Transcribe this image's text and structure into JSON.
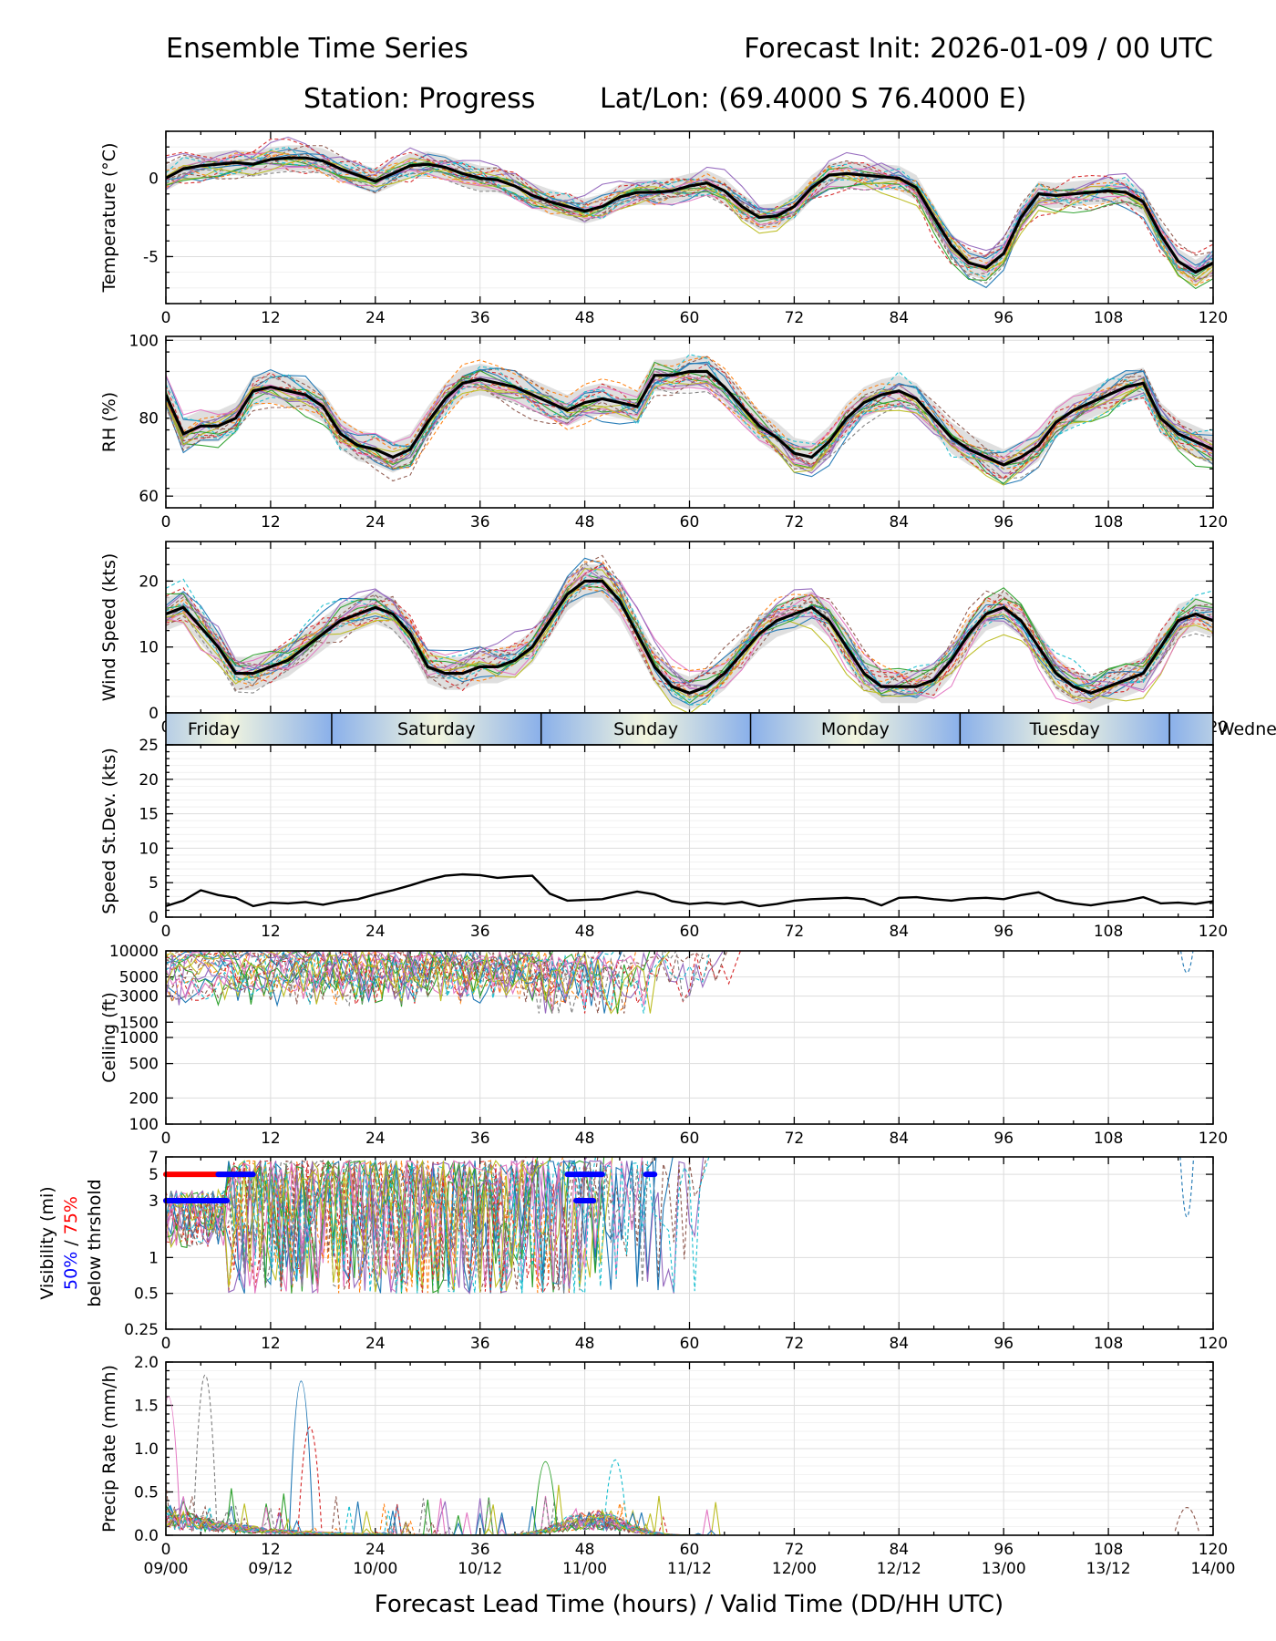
{
  "header": {
    "title_left": "Ensemble Time Series",
    "title_right": "Forecast Init: 2026-01-09 / 00 UTC",
    "station": "Station: Progress",
    "latlon": "Lat/Lon: (69.4000 S 76.4000 E)"
  },
  "xaxis": {
    "lead_ticks": [
      "0",
      "12",
      "24",
      "36",
      "48",
      "60",
      "72",
      "84",
      "96",
      "108",
      "120"
    ],
    "valid_ticks": [
      "09/00",
      "09/12",
      "10/00",
      "10/12",
      "11/00",
      "11/12",
      "12/00",
      "12/12",
      "13/00",
      "13/12",
      "14/00"
    ],
    "label": "Forecast Lead Time (hours) / Valid Time (DD/HH UTC)",
    "range": [
      0,
      120
    ]
  },
  "day_strip": {
    "days": [
      "Friday",
      "Saturday",
      "Sunday",
      "Monday",
      "Tuesday",
      "Wedne"
    ],
    "boundaries_hours": [
      19,
      43,
      67,
      91,
      115
    ]
  },
  "colors": {
    "members": [
      "#1f77b4",
      "#ff7f0e",
      "#2ca02c",
      "#d62728",
      "#9467bd",
      "#8c564b",
      "#e377c2",
      "#7f7f7f",
      "#bcbd22",
      "#17becf"
    ],
    "mean": "#000000",
    "spread": "#d9d9d9",
    "vis50": "#0000ff",
    "vis75": "#ff0000",
    "day_edge": "#8ab0ea",
    "day_mid": "#f3f6df"
  },
  "chart_data": [
    {
      "type": "line",
      "panel": "temperature",
      "ylabel": "Temperature (°C)",
      "ylim": [
        -8,
        3
      ],
      "yticks": [
        0,
        -5
      ],
      "ytick_labels": [
        "0",
        "-5"
      ],
      "x": [
        0,
        2,
        4,
        6,
        8,
        10,
        12,
        14,
        16,
        18,
        20,
        22,
        24,
        26,
        28,
        30,
        32,
        34,
        36,
        38,
        40,
        42,
        44,
        46,
        48,
        50,
        52,
        54,
        56,
        58,
        60,
        62,
        64,
        66,
        68,
        70,
        72,
        74,
        76,
        78,
        80,
        82,
        84,
        86,
        88,
        90,
        92,
        94,
        96,
        98,
        100,
        102,
        104,
        106,
        108,
        110,
        112,
        114,
        116,
        118,
        120
      ],
      "mean": [
        0.0,
        0.6,
        0.8,
        0.9,
        1.0,
        0.9,
        1.2,
        1.3,
        1.3,
        1.1,
        0.6,
        0.2,
        -0.2,
        0.3,
        0.8,
        0.9,
        0.7,
        0.3,
        0.0,
        -0.1,
        -0.5,
        -1.1,
        -1.5,
        -1.8,
        -2.1,
        -1.8,
        -1.2,
        -0.9,
        -0.9,
        -0.8,
        -0.5,
        -0.3,
        -0.8,
        -1.8,
        -2.5,
        -2.4,
        -1.8,
        -0.6,
        0.2,
        0.3,
        0.2,
        0.1,
        0.0,
        -0.6,
        -2.5,
        -4.3,
        -5.4,
        -5.7,
        -4.8,
        -2.5,
        -1.0,
        -1.1,
        -1.0,
        -0.9,
        -0.8,
        -0.9,
        -1.5,
        -3.6,
        -5.3,
        -6.0,
        -5.4
      ],
      "spread": 0.8,
      "members": 20
    },
    {
      "type": "line",
      "panel": "rh",
      "ylabel": "RH (%)",
      "ylim": [
        57,
        101
      ],
      "yticks": [
        100,
        80,
        60
      ],
      "ytick_labels": [
        "100",
        "80",
        "60"
      ],
      "x": [
        0,
        2,
        4,
        6,
        8,
        10,
        12,
        14,
        16,
        18,
        20,
        22,
        24,
        26,
        28,
        30,
        32,
        34,
        36,
        38,
        40,
        42,
        44,
        46,
        48,
        50,
        52,
        54,
        56,
        58,
        60,
        62,
        64,
        66,
        68,
        70,
        72,
        74,
        76,
        78,
        80,
        82,
        84,
        86,
        88,
        90,
        92,
        94,
        96,
        98,
        100,
        102,
        104,
        106,
        108,
        110,
        112,
        114,
        116,
        118,
        120
      ],
      "mean": [
        86,
        76,
        78,
        78,
        80,
        87,
        88,
        87,
        86,
        83,
        76,
        73,
        72,
        70,
        72,
        79,
        85,
        89,
        90,
        89,
        88,
        86,
        84,
        82,
        84,
        85,
        84,
        83,
        91,
        91,
        92,
        92,
        88,
        83,
        78,
        75,
        71,
        70,
        74,
        80,
        84,
        86,
        87,
        85,
        80,
        75,
        72,
        70,
        68,
        70,
        73,
        79,
        82,
        84,
        86,
        88,
        89,
        80,
        76,
        74,
        72
      ],
      "spread": 4,
      "members": 20
    },
    {
      "type": "line",
      "panel": "wind_speed",
      "ylabel": "Wind Speed (kts)",
      "ylim": [
        0,
        26
      ],
      "yticks": [
        20,
        10,
        0
      ],
      "ytick_labels": [
        "20",
        "10",
        "0"
      ],
      "x": [
        0,
        2,
        4,
        6,
        8,
        10,
        12,
        14,
        16,
        18,
        20,
        22,
        24,
        26,
        28,
        30,
        32,
        34,
        36,
        38,
        40,
        42,
        44,
        46,
        48,
        50,
        52,
        54,
        56,
        58,
        60,
        62,
        64,
        66,
        68,
        70,
        72,
        74,
        76,
        78,
        80,
        82,
        84,
        86,
        88,
        90,
        92,
        94,
        96,
        98,
        100,
        102,
        104,
        106,
        108,
        110,
        112,
        114,
        116,
        118,
        120
      ],
      "mean": [
        15,
        16,
        13,
        10,
        6,
        6,
        7,
        8,
        10,
        12,
        14,
        15,
        16,
        15,
        12,
        7,
        6,
        6,
        7,
        7,
        8,
        10,
        14,
        18,
        20,
        20,
        17,
        12,
        7,
        4,
        3,
        4,
        6,
        9,
        12,
        14,
        15,
        16,
        14,
        10,
        6,
        4,
        4,
        4,
        5,
        8,
        12,
        15,
        16,
        14,
        10,
        6,
        4,
        3,
        4,
        5,
        6,
        10,
        14,
        15,
        14
      ],
      "spread": 2.5,
      "members": 20
    },
    {
      "type": "line",
      "panel": "speed_stdev",
      "ylabel": "Speed St.Dev. (kts)",
      "ylim": [
        0,
        25
      ],
      "yticks": [
        25,
        20,
        15,
        10,
        5,
        0
      ],
      "ytick_labels": [
        "25",
        "20",
        "15",
        "10",
        "5",
        "0"
      ],
      "x": [
        0,
        2,
        4,
        6,
        8,
        10,
        12,
        14,
        16,
        18,
        20,
        22,
        24,
        26,
        28,
        30,
        32,
        34,
        36,
        38,
        40,
        42,
        44,
        46,
        48,
        50,
        52,
        54,
        56,
        58,
        60,
        62,
        64,
        66,
        68,
        70,
        72,
        74,
        76,
        78,
        80,
        82,
        84,
        86,
        88,
        90,
        92,
        94,
        96,
        98,
        100,
        102,
        104,
        106,
        108,
        110,
        112,
        114,
        116,
        118,
        120
      ],
      "values": [
        1.6,
        2.4,
        3.9,
        3.2,
        2.8,
        1.6,
        2.1,
        2.0,
        2.2,
        1.8,
        2.3,
        2.6,
        3.3,
        3.9,
        4.6,
        5.4,
        6.0,
        6.2,
        6.1,
        5.7,
        5.9,
        6.0,
        3.4,
        2.4,
        2.5,
        2.6,
        3.2,
        3.7,
        3.3,
        2.3,
        1.9,
        2.1,
        1.9,
        2.2,
        1.6,
        1.9,
        2.4,
        2.6,
        2.7,
        2.8,
        2.6,
        1.7,
        2.8,
        2.9,
        2.6,
        2.4,
        2.7,
        2.8,
        2.6,
        3.2,
        3.6,
        2.5,
        2.0,
        1.7,
        2.1,
        2.4,
        2.9,
        2.0,
        2.1,
        1.9,
        2.3
      ]
    },
    {
      "type": "line",
      "panel": "ceiling",
      "ylabel": "Ceiling (ft)",
      "yscale": "log",
      "ylim": [
        100,
        10000
      ],
      "yticks": [
        10000,
        5000,
        3000,
        1500,
        1000,
        500,
        200,
        100
      ],
      "ytick_labels": [
        "10000",
        "5000",
        "3000",
        "1500",
        "1000",
        "500",
        "200",
        "100"
      ],
      "note": "member ceilings mostly 3000-10000 ft for hours 0-66, then above 10000 ft"
    },
    {
      "type": "line",
      "panel": "visibility",
      "ylabel_lines": [
        "Visibility (mi)",
        "50%",
        " / ",
        "75%",
        "below thrshold"
      ],
      "yscale": "log",
      "ylim": [
        0.25,
        7
      ],
      "yticks": [
        7,
        5,
        3,
        1,
        0.5,
        0.25
      ],
      "ytick_labels": [
        "7",
        "5",
        "3",
        "1",
        "0.5",
        "0.25"
      ],
      "threshold_markers": [
        {
          "percent": 75,
          "level": 5,
          "hours": [
            0,
            9
          ]
        },
        {
          "percent": 75,
          "level": 3,
          "hours": [
            0,
            5
          ]
        },
        {
          "percent": 50,
          "level": 5,
          "hours": [
            6,
            10
          ]
        },
        {
          "percent": 50,
          "level": 3,
          "hours": [
            0,
            7
          ]
        },
        {
          "percent": 50,
          "level": 5,
          "hours": [
            46,
            50
          ]
        },
        {
          "percent": 50,
          "level": 3,
          "hours": [
            47,
            49
          ]
        },
        {
          "percent": 50,
          "level": 5,
          "hours": [
            55,
            56
          ]
        }
      ]
    },
    {
      "type": "line",
      "panel": "precip",
      "ylabel": "Precip Rate (mm/h)",
      "ylim": [
        0,
        2.0
      ],
      "yticks": [
        2.0,
        1.5,
        1.0,
        0.5,
        0.0
      ],
      "ytick_labels": [
        "2.0",
        "1.5",
        "1.0",
        "0.5",
        "0.0"
      ],
      "peaks": [
        {
          "hour": 4.5,
          "value": 1.85
        },
        {
          "hour": 15.5,
          "value": 1.78
        },
        {
          "hour": 16.5,
          "value": 1.25
        },
        {
          "hour": 0.3,
          "value": 1.6
        },
        {
          "hour": 51.5,
          "value": 0.87
        },
        {
          "hour": 43.5,
          "value": 0.85
        },
        {
          "hour": 117.0,
          "value": 0.32
        }
      ]
    }
  ]
}
